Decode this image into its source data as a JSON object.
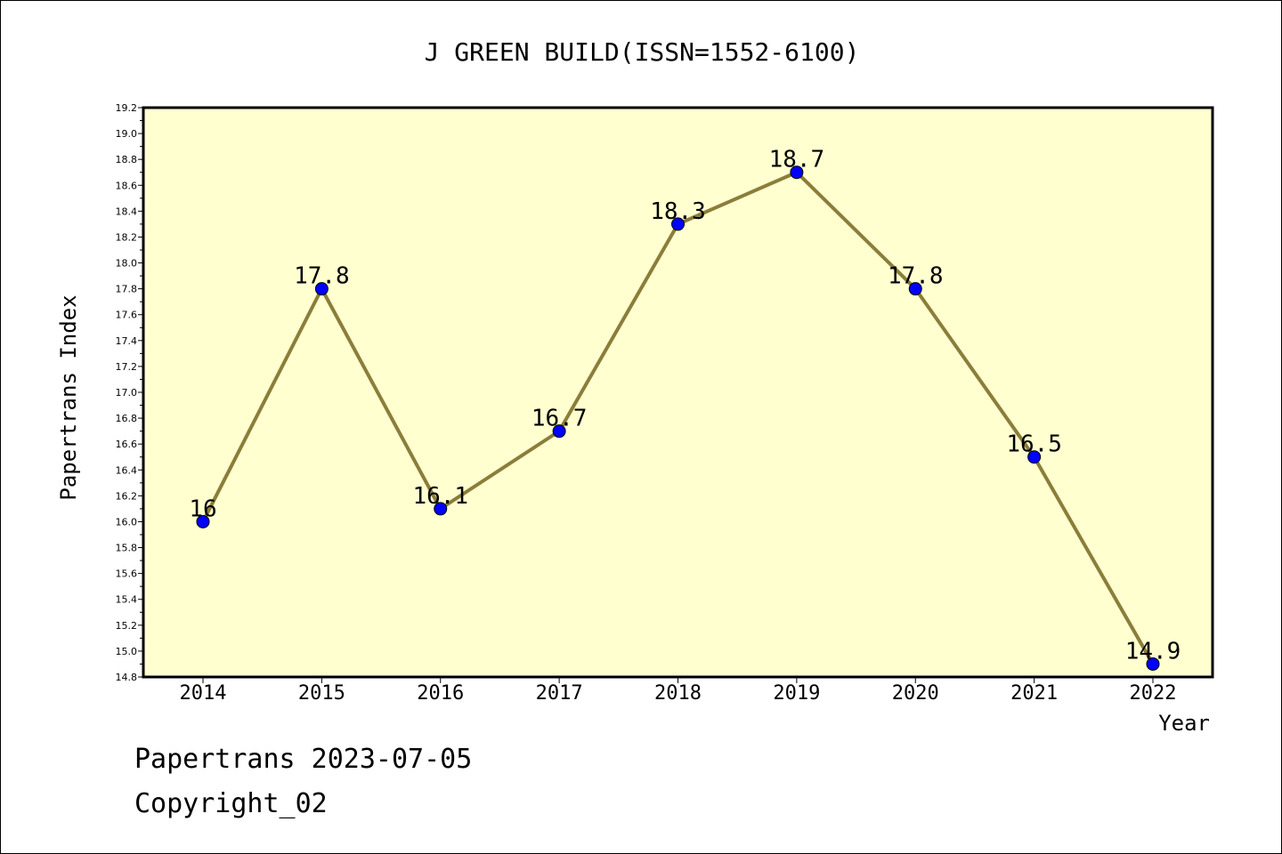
{
  "chart_data": {
    "type": "line",
    "title": "J GREEN BUILD(ISSN=1552-6100)",
    "xlabel": "Year",
    "ylabel": "Papertrans Index",
    "categories": [
      "2014",
      "2015",
      "2016",
      "2017",
      "2018",
      "2019",
      "2020",
      "2021",
      "2022"
    ],
    "values": [
      16,
      17.8,
      16.1,
      16.7,
      18.3,
      18.7,
      17.8,
      16.5,
      14.9
    ],
    "data_labels": [
      "16",
      "17.8",
      "16.1",
      "16.7",
      "18.3",
      "18.7",
      "17.8",
      "16.5",
      "14.9"
    ],
    "ylim": [
      14.8,
      19.2
    ],
    "yticks": [
      "14.8",
      "15.0",
      "15.2",
      "15.4",
      "15.6",
      "15.8",
      "16.0",
      "16.2",
      "16.4",
      "16.6",
      "16.8",
      "17.0",
      "17.2",
      "17.4",
      "17.6",
      "17.8",
      "18.0",
      "18.2",
      "18.4",
      "18.6",
      "18.8",
      "19.0",
      "19.2"
    ],
    "grid": false,
    "colors": {
      "plot_background": "#ffffd0",
      "line": "#8b7d3a",
      "marker": "#0000ff"
    }
  },
  "footer": {
    "line1": "Papertrans 2023-07-05",
    "line2": "Copyright_02"
  }
}
